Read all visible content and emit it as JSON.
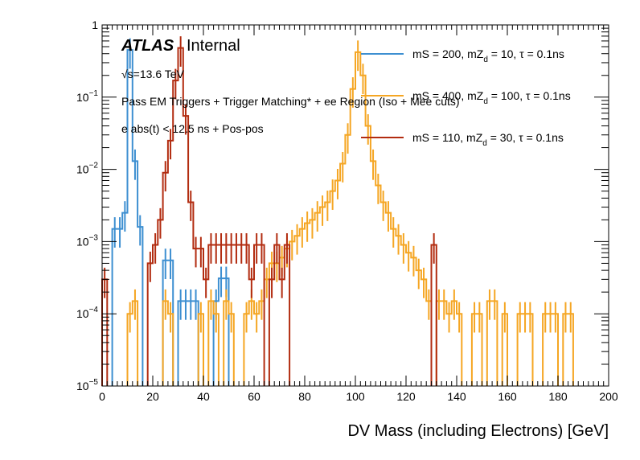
{
  "chart_data": {
    "type": "histogram-step",
    "title": "",
    "xlabel": "DV Mass (including Electrons) [GeV]",
    "ylabel": "",
    "xlim": [
      0,
      200
    ],
    "ylim": [
      1e-05,
      1
    ],
    "yscale": "log",
    "bin_width": 2,
    "x_ticks": [
      "0",
      "20",
      "40",
      "60",
      "80",
      "100",
      "120",
      "140",
      "160",
      "180",
      "200"
    ],
    "x_tick_values": [
      0,
      20,
      40,
      60,
      80,
      100,
      120,
      140,
      160,
      180,
      200
    ],
    "y_ticks": [
      {
        "value": 1,
        "base": "1",
        "exp": ""
      },
      {
        "value": 0.1,
        "base": "10",
        "exp": "−1"
      },
      {
        "value": 0.01,
        "base": "10",
        "exp": "−2"
      },
      {
        "value": 0.001,
        "base": "10",
        "exp": "−3"
      },
      {
        "value": 0.0001,
        "base": "10",
        "exp": "−4"
      },
      {
        "value": 1e-05,
        "base": "10",
        "exp": "−5"
      }
    ],
    "annotations": {
      "atlas": "ATLAS",
      "internal": "Internal",
      "sqrt_s": "√s=13.6 TeV",
      "line1": "Pass EM Triggers + Trigger Matching* + ee Region (Iso + Mee cuts)",
      "line2": "e abs(t) < 12.5 ns + Pos-pos"
    },
    "legend_position": "top-right",
    "series": [
      {
        "name": "mS = 200, mZ_d = 10, τ = 0.1ns",
        "legend_main": "mS = 200, mZ",
        "legend_sub": "d",
        "legend_rest": " = 10, τ = 0.1ns",
        "color": "#3d8fd1",
        "bins": [
          {
            "x": 4,
            "y": 0.0015
          },
          {
            "x": 6,
            "y": 0.0015
          },
          {
            "x": 8,
            "y": 0.0025
          },
          {
            "x": 10,
            "y": 0.45
          },
          {
            "x": 12,
            "y": 0.013
          },
          {
            "x": 14,
            "y": 0.0016
          },
          {
            "x": 24,
            "y": 0.00055
          },
          {
            "x": 26,
            "y": 0.00055
          },
          {
            "x": 30,
            "y": 0.00015
          },
          {
            "x": 32,
            "y": 0.00015
          },
          {
            "x": 34,
            "y": 0.00015
          },
          {
            "x": 36,
            "y": 0.00015
          },
          {
            "x": 44,
            "y": 0.00015
          },
          {
            "x": 46,
            "y": 0.00031
          },
          {
            "x": 48,
            "y": 0.00031
          }
        ]
      },
      {
        "name": "mS = 400, mZ_d = 100, τ = 0.1ns",
        "legend_main": "mS = 400, mZ",
        "legend_sub": "d",
        "legend_rest": " = 100, τ = 0.1ns",
        "color": "#f5a623",
        "bins": [
          {
            "x": 10,
            "y": 0.0001
          },
          {
            "x": 12,
            "y": 0.00015
          },
          {
            "x": 24,
            "y": 0.00015
          },
          {
            "x": 26,
            "y": 0.0001
          },
          {
            "x": 38,
            "y": 0.0001
          },
          {
            "x": 42,
            "y": 0.00015
          },
          {
            "x": 44,
            "y": 0.0001
          },
          {
            "x": 48,
            "y": 0.00015
          },
          {
            "x": 50,
            "y": 0.0001
          },
          {
            "x": 56,
            "y": 0.0001
          },
          {
            "x": 58,
            "y": 0.00015
          },
          {
            "x": 60,
            "y": 0.0001
          },
          {
            "x": 62,
            "y": 0.00015
          },
          {
            "x": 64,
            "y": 0.0003
          },
          {
            "x": 66,
            "y": 0.0005
          },
          {
            "x": 68,
            "y": 0.0005
          },
          {
            "x": 70,
            "y": 0.0006
          },
          {
            "x": 72,
            "y": 0.0008
          },
          {
            "x": 74,
            "y": 0.001
          },
          {
            "x": 76,
            "y": 0.0012
          },
          {
            "x": 78,
            "y": 0.0015
          },
          {
            "x": 80,
            "y": 0.0018
          },
          {
            "x": 82,
            "y": 0.002
          },
          {
            "x": 84,
            "y": 0.0025
          },
          {
            "x": 86,
            "y": 0.003
          },
          {
            "x": 88,
            "y": 0.0035
          },
          {
            "x": 90,
            "y": 0.005
          },
          {
            "x": 92,
            "y": 0.007
          },
          {
            "x": 94,
            "y": 0.012
          },
          {
            "x": 96,
            "y": 0.03
          },
          {
            "x": 98,
            "y": 0.13
          },
          {
            "x": 100,
            "y": 0.42
          },
          {
            "x": 102,
            "y": 0.2
          },
          {
            "x": 104,
            "y": 0.04
          },
          {
            "x": 106,
            "y": 0.013
          },
          {
            "x": 108,
            "y": 0.006
          },
          {
            "x": 110,
            "y": 0.0035
          },
          {
            "x": 112,
            "y": 0.0025
          },
          {
            "x": 114,
            "y": 0.0015
          },
          {
            "x": 116,
            "y": 0.0012
          },
          {
            "x": 118,
            "y": 0.0009
          },
          {
            "x": 120,
            "y": 0.0007
          },
          {
            "x": 122,
            "y": 0.0006
          },
          {
            "x": 124,
            "y": 0.0004
          },
          {
            "x": 126,
            "y": 0.0003
          },
          {
            "x": 128,
            "y": 0.00015
          },
          {
            "x": 132,
            "y": 0.00015
          },
          {
            "x": 134,
            "y": 0.00015
          },
          {
            "x": 136,
            "y": 0.0001
          },
          {
            "x": 138,
            "y": 0.00015
          },
          {
            "x": 140,
            "y": 0.0001
          },
          {
            "x": 146,
            "y": 0.0001
          },
          {
            "x": 148,
            "y": 0.0001
          },
          {
            "x": 152,
            "y": 0.00015
          },
          {
            "x": 154,
            "y": 0.00015
          },
          {
            "x": 158,
            "y": 0.0001
          },
          {
            "x": 164,
            "y": 0.0001
          },
          {
            "x": 166,
            "y": 0.0001
          },
          {
            "x": 168,
            "y": 0.0001
          },
          {
            "x": 174,
            "y": 0.0001
          },
          {
            "x": 176,
            "y": 0.0001
          },
          {
            "x": 178,
            "y": 0.0001
          },
          {
            "x": 182,
            "y": 0.0001
          },
          {
            "x": 184,
            "y": 0.0001
          }
        ]
      },
      {
        "name": "mS = 110, mZ_d = 30, τ = 0.1ns",
        "legend_main": "mS = 110, mZ",
        "legend_sub": "d",
        "legend_rest": " = 30, τ = 0.1ns",
        "color": "#b22c10",
        "bins": [
          {
            "x": 0,
            "y": 0.0003
          },
          {
            "x": 18,
            "y": 0.0005
          },
          {
            "x": 20,
            "y": 0.0009
          },
          {
            "x": 22,
            "y": 0.002
          },
          {
            "x": 24,
            "y": 0.009
          },
          {
            "x": 26,
            "y": 0.025
          },
          {
            "x": 28,
            "y": 0.17
          },
          {
            "x": 30,
            "y": 0.48
          },
          {
            "x": 32,
            "y": 0.055
          },
          {
            "x": 34,
            "y": 0.0035
          },
          {
            "x": 36,
            "y": 0.0008
          },
          {
            "x": 38,
            "y": 0.0008
          },
          {
            "x": 40,
            "y": 0.0003
          },
          {
            "x": 42,
            "y": 0.0009
          },
          {
            "x": 44,
            "y": 0.0009
          },
          {
            "x": 46,
            "y": 0.0009
          },
          {
            "x": 48,
            "y": 0.0009
          },
          {
            "x": 50,
            "y": 0.0009
          },
          {
            "x": 52,
            "y": 0.0009
          },
          {
            "x": 54,
            "y": 0.0009
          },
          {
            "x": 56,
            "y": 0.0009
          },
          {
            "x": 58,
            "y": 0.0003
          },
          {
            "x": 60,
            "y": 0.0009
          },
          {
            "x": 62,
            "y": 0.0009
          },
          {
            "x": 66,
            "y": 0.0003
          },
          {
            "x": 68,
            "y": 0.0009
          },
          {
            "x": 70,
            "y": 0.0003
          },
          {
            "x": 72,
            "y": 0.0009
          },
          {
            "x": 130,
            "y": 0.0009
          }
        ]
      }
    ]
  }
}
